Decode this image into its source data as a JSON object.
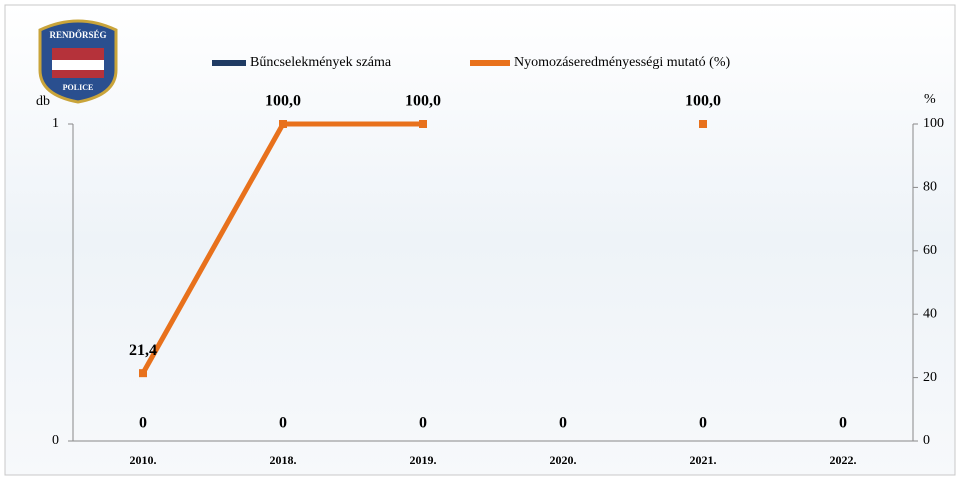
{
  "logo": {
    "top": "RENDŐRSÉG",
    "bottom": "POLICE"
  },
  "chart_data": {
    "type": "bar-line",
    "categories": [
      "2010.",
      "2018.",
      "2019.",
      "2020.",
      "2021.",
      "2022."
    ],
    "ylabel": "db",
    "y2label": "%",
    "ylim": [
      0,
      1
    ],
    "yticks": [
      0,
      1
    ],
    "y2lim": [
      0,
      100
    ],
    "y2ticks": [
      0,
      20,
      40,
      60,
      80,
      100
    ],
    "series": [
      {
        "name": "Bűncselekmények száma",
        "type": "bar",
        "color": "#1f3b63",
        "values": [
          0,
          0,
          0,
          0,
          0,
          0
        ]
      },
      {
        "name": "Nyomozáseredményességi mutató (%)",
        "type": "line",
        "axis": "y2",
        "color": "#e8711c",
        "values": [
          21.4,
          100,
          100,
          null,
          100,
          null
        ],
        "value_labels": [
          "21,4",
          "100,0",
          "100,0",
          null,
          "100,0",
          null
        ]
      }
    ]
  }
}
